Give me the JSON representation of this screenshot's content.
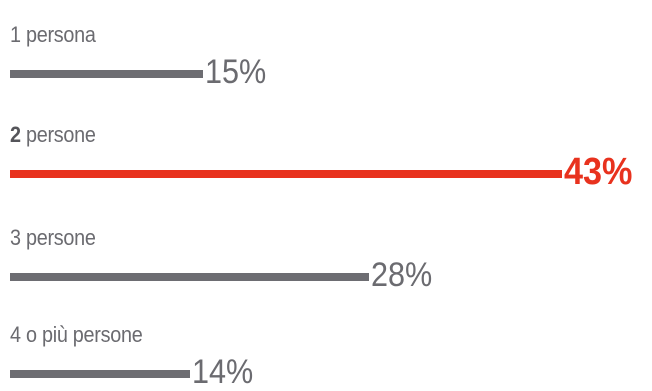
{
  "chart_data": {
    "type": "bar",
    "orientation": "horizontal",
    "categories": [
      {
        "num": "1",
        "rest": " persona"
      },
      {
        "num": "2",
        "rest": " persone"
      },
      {
        "num": "3",
        "rest": " persone"
      },
      {
        "num": "4",
        "rest": " o più persone"
      }
    ],
    "values": [
      15,
      43,
      28,
      14
    ],
    "value_labels": [
      "15%",
      "43%",
      "28%",
      "14%"
    ],
    "highlight_index": 1,
    "xlim": [
      0,
      43
    ],
    "grid": false,
    "colors": {
      "bar": "#6d6d72",
      "highlight": "#e8321e",
      "text": "#6b6b70"
    }
  }
}
